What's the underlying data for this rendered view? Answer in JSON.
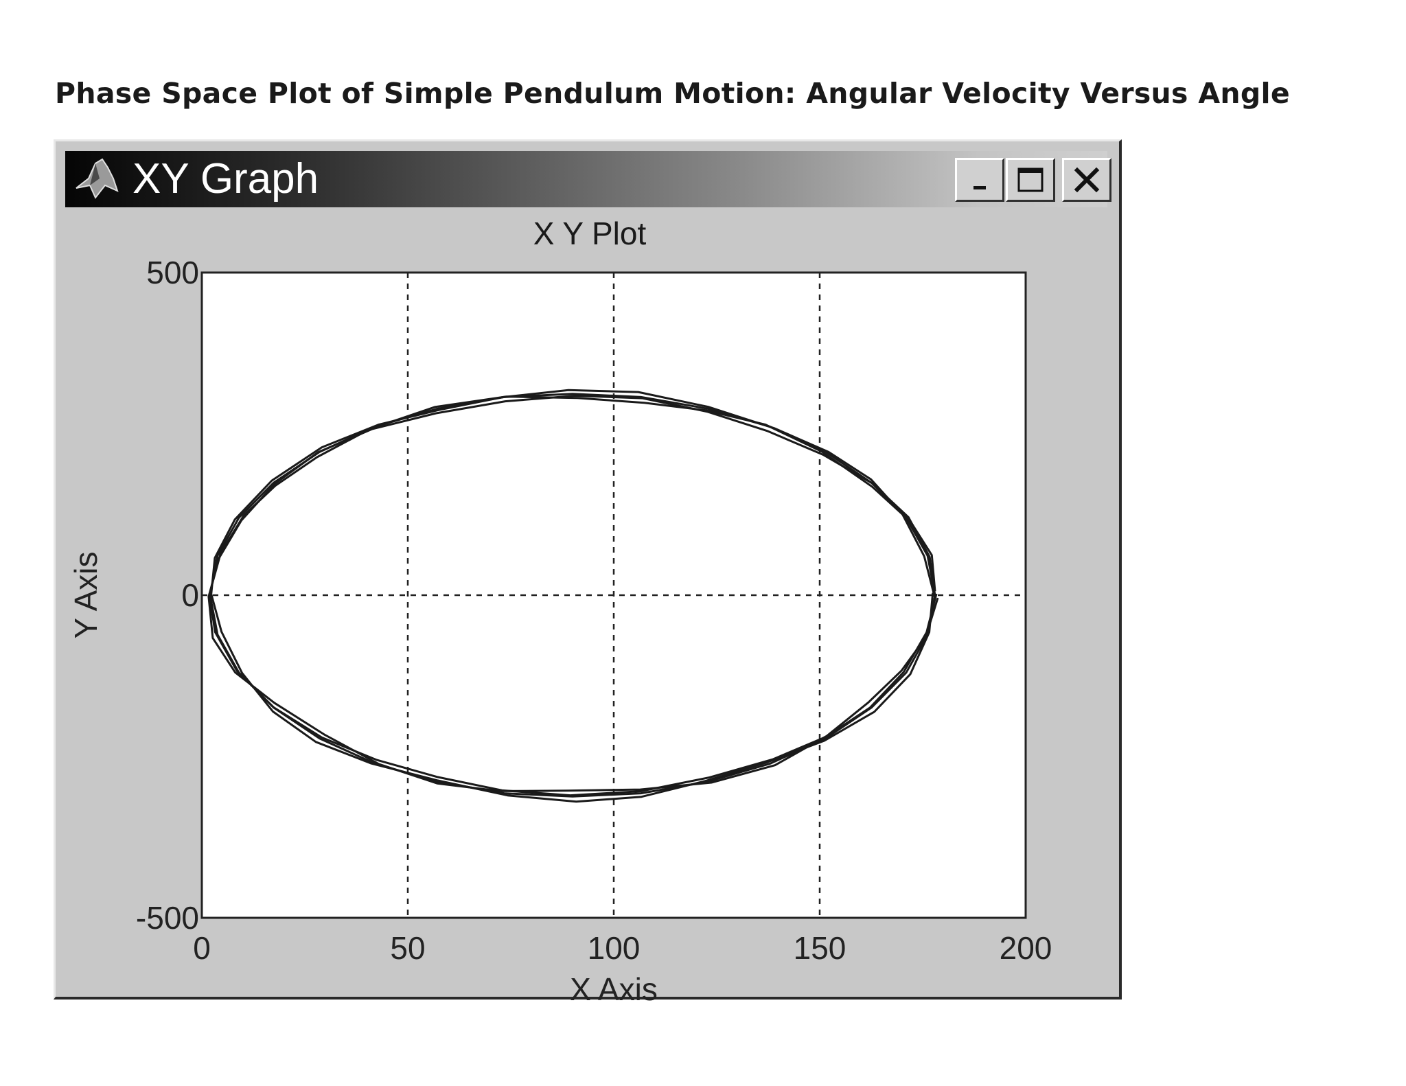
{
  "caption": "Phase Space Plot of Simple Pendulum Motion: Angular Velocity Versus Angle",
  "window": {
    "title": "XY Graph",
    "buttons": {
      "minimize": "_",
      "maximize": "□",
      "close": "×"
    }
  },
  "chart_data": {
    "type": "line",
    "title": "X Y Plot",
    "xlabel": "X Axis",
    "ylabel": "Y Axis",
    "xlim": [
      0,
      200
    ],
    "ylim": [
      -500,
      500
    ],
    "xticks": [
      "0",
      "50",
      "100",
      "150",
      "200"
    ],
    "yticks": [
      "-500",
      "0",
      "500"
    ],
    "grid": "dashed",
    "series": [
      {
        "description": "phase-space trajectory (closed orbit, repeated cycles)",
        "x": [
          178,
          176.2,
          171,
          162.6,
          151.4,
          138,
          122.8,
          106.6,
          90,
          73.4,
          57.2,
          42,
          28.6,
          17.4,
          9,
          3.8,
          2,
          3.8,
          9,
          17.4,
          28.6,
          42,
          57.2,
          73.4,
          90,
          106.6,
          122.8,
          138,
          151.4,
          162.6,
          171,
          176.2,
          178
        ],
        "y": [
          0,
          61,
          120,
          174,
          222,
          261,
          289,
          307,
          312,
          307,
          289,
          261,
          222,
          174,
          120,
          61,
          0,
          -61,
          -120,
          -174,
          -222,
          -261,
          -289,
          -307,
          -312,
          -307,
          -289,
          -261,
          -222,
          -174,
          -120,
          -61,
          0
        ]
      }
    ]
  }
}
